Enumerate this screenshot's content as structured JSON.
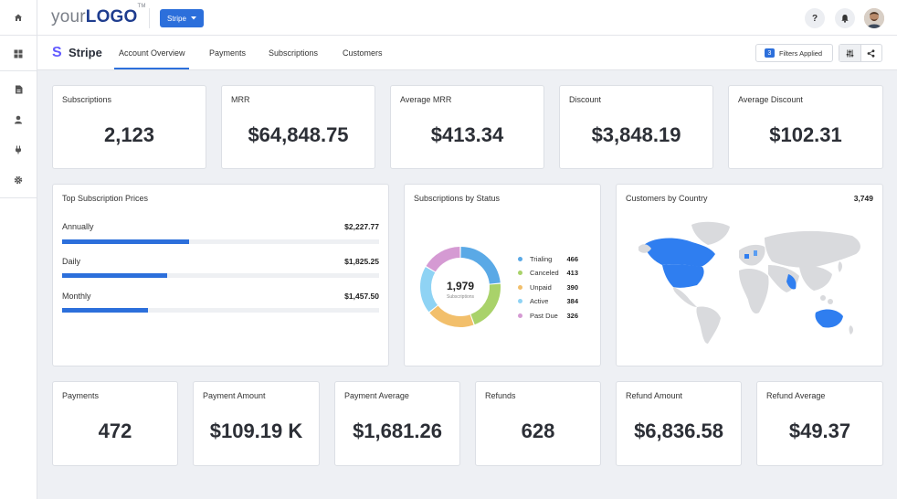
{
  "header": {
    "logo_prefix": "your",
    "logo_brand": "LOGO",
    "logo_tm": "TM",
    "client_button": "Stripe",
    "help_label": "?"
  },
  "rail": {
    "icons": [
      "home-icon",
      "dashboard-icon",
      "report-icon",
      "user-icon",
      "plug-icon",
      "gear-icon"
    ]
  },
  "subnav": {
    "brand_letter": "S",
    "title": "Stripe",
    "tabs": [
      {
        "label": "Account Overview",
        "active": true
      },
      {
        "label": "Payments",
        "active": false
      },
      {
        "label": "Subscriptions",
        "active": false
      },
      {
        "label": "Customers",
        "active": false
      }
    ],
    "filters_count": "3",
    "filters_label": "Filters Applied"
  },
  "kpis_top": [
    {
      "label": "Subscriptions",
      "value": "2,123"
    },
    {
      "label": "MRR",
      "value": "$64,848.75"
    },
    {
      "label": "Average MRR",
      "value": "$413.34"
    },
    {
      "label": "Discount",
      "value": "$3,848.19"
    },
    {
      "label": "Average Discount",
      "value": "$102.31"
    }
  ],
  "top_prices": {
    "title": "Top Subscription Prices",
    "rows": [
      {
        "name": "Annually",
        "value": "$2,227.77",
        "fill_fraction": 0.4
      },
      {
        "name": "Daily",
        "value": "$1,825.25",
        "fill_fraction": 0.33
      },
      {
        "name": "Monthly",
        "value": "$1,457.50",
        "fill_fraction": 0.27
      }
    ]
  },
  "subs_status": {
    "title": "Subscriptions by Status",
    "total": "1,979",
    "total_caption": "Subscriptions",
    "items": [
      {
        "label": "Trialing",
        "count": "466",
        "value": 466,
        "color": "#5aa9e6"
      },
      {
        "label": "Canceled",
        "count": "413",
        "value": 413,
        "color": "#a9d26a"
      },
      {
        "label": "Unpaid",
        "count": "390",
        "value": 390,
        "color": "#f2bf6b"
      },
      {
        "label": "Active",
        "count": "384",
        "value": 384,
        "color": "#8fd3f4"
      },
      {
        "label": "Past Due",
        "count": "326",
        "value": 326,
        "color": "#d59ad3"
      }
    ]
  },
  "countries": {
    "title": "Customers by Country",
    "total": "3,749"
  },
  "kpis_bottom": [
    {
      "label": "Payments",
      "value": "472"
    },
    {
      "label": "Payment Amount",
      "value": "$109.19 K"
    },
    {
      "label": "Payment Average",
      "value": "$1,681.26"
    },
    {
      "label": "Refunds",
      "value": "628"
    },
    {
      "label": "Refund Amount",
      "value": "$6,836.58"
    },
    {
      "label": "Refund Average",
      "value": "$49.37"
    }
  ],
  "colors": {
    "accent": "#2c6fdb",
    "stripe": "#635bff",
    "map_land": "#d9dadd",
    "map_highlight": "#2f7ef0"
  }
}
